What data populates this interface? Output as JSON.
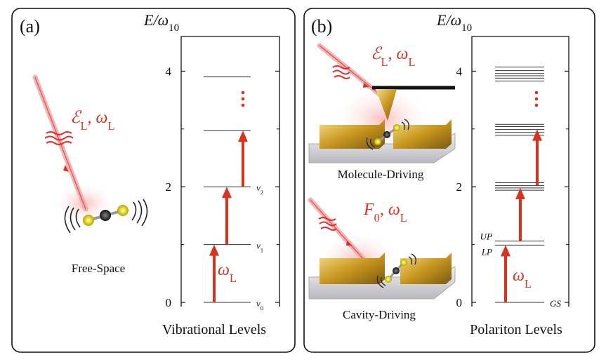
{
  "panels": [
    {
      "label": "(a)",
      "axis_title": [
        {
          "text": "E"
        },
        {
          "text": "/ω"
        },
        {
          "sub": "10"
        }
      ],
      "ylim": [
        0,
        4.6
      ],
      "yticks": [
        0,
        2,
        4
      ],
      "minor_ticks": [
        1,
        3
      ],
      "levels": [
        0,
        1,
        2,
        2.97,
        3.9
      ],
      "level_labels": [
        {
          "side": "right",
          "parts": [
            {
              "text": "ν"
            },
            {
              "sub": "0"
            }
          ]
        },
        {
          "side": "right",
          "parts": [
            {
              "text": "ν"
            },
            {
              "sub": "1"
            }
          ]
        },
        {
          "side": "right",
          "parts": [
            {
              "text": "ν"
            },
            {
              "sub": "2"
            }
          ]
        },
        null,
        null
      ],
      "arrows": [
        {
          "from": 0,
          "to": 1
        },
        {
          "from": 1,
          "to": 2
        },
        {
          "from": 2,
          "to": 2.97
        }
      ],
      "frequency_label": [
        {
          "text": "ω"
        },
        {
          "sub": "L"
        }
      ],
      "axis_caption": "Vibrational Levels",
      "scenes": [
        {
          "caption": "Free-Space",
          "field_label": [
            {
              "text": "ℰ"
            },
            {
              "sub": "L"
            },
            {
              "text": ", ω"
            },
            {
              "sub": "L"
            }
          ]
        }
      ]
    },
    {
      "label": "(b)",
      "axis_title": [
        {
          "text": "E"
        },
        {
          "text": "/ω"
        },
        {
          "sub": "10"
        }
      ],
      "ylim": [
        0,
        4.6
      ],
      "yticks": [
        0,
        2,
        4
      ],
      "minor_ticks": [
        1,
        3
      ],
      "levels": [
        0,
        0.99,
        1.06,
        1.94,
        1.98,
        2.02,
        2.07,
        2.89,
        2.94,
        2.99,
        3.04,
        3.08,
        3.83,
        3.88,
        3.92,
        3.96,
        4.01,
        4.07
      ],
      "level_labels": [
        {
          "side": "right",
          "parts": [
            {
              "text": "GS"
            }
          ]
        },
        {
          "side": "left",
          "parts": [
            {
              "text": "LP"
            }
          ]
        },
        {
          "side": "left",
          "parts": [
            {
              "text": "UP"
            }
          ]
        },
        null,
        null,
        null,
        null,
        null,
        null,
        null,
        null,
        null,
        null,
        null,
        null,
        null,
        null,
        null
      ],
      "arrows": [
        {
          "from": 0,
          "to": 0.99
        },
        {
          "from": 1.06,
          "to": 1.98
        },
        {
          "from": 2.02,
          "to": 2.99
        }
      ],
      "frequency_label": [
        {
          "text": "ω"
        },
        {
          "sub": "L"
        }
      ],
      "axis_caption": "Polariton Levels",
      "scenes": [
        {
          "caption": "Molecule-Driving",
          "field_label": [
            {
              "text": "ℰ"
            },
            {
              "sub": "L"
            },
            {
              "text": ", ω"
            },
            {
              "sub": "L"
            }
          ]
        },
        {
          "caption": "Cavity-Driving",
          "field_label": [
            {
              "text": "F"
            },
            {
              "sub": "0"
            },
            {
              "text": ", ω"
            },
            {
              "sub": "L"
            }
          ]
        }
      ]
    }
  ]
}
